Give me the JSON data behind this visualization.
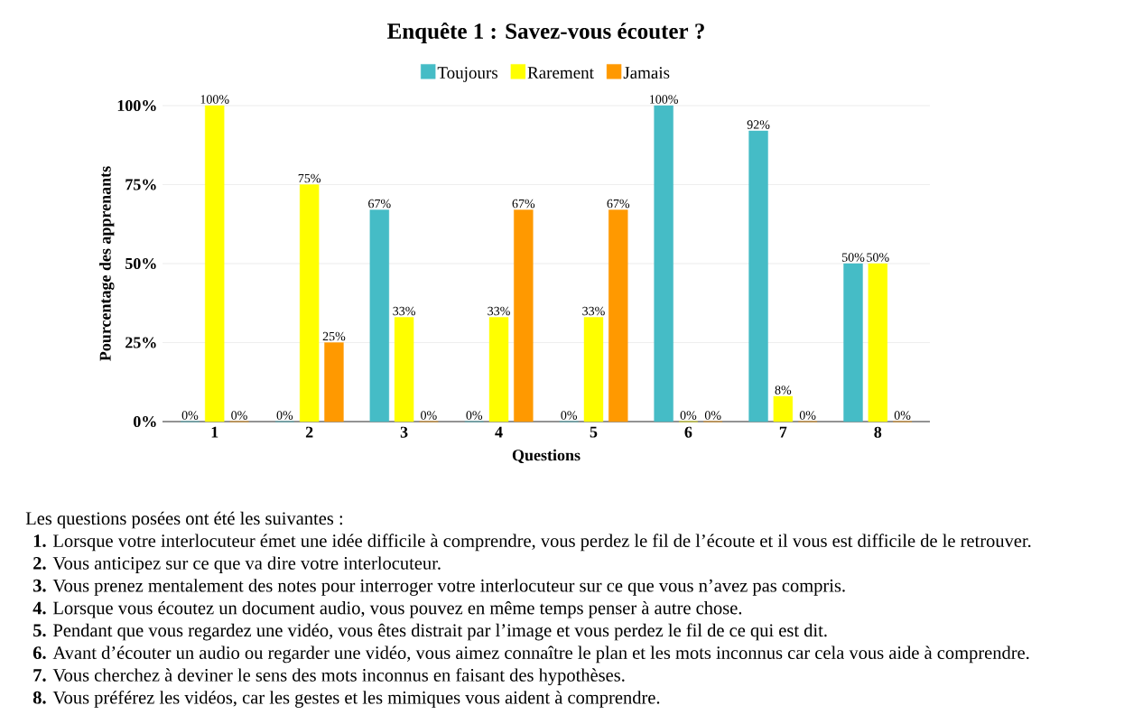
{
  "chart_data": {
    "type": "bar",
    "title": "Enquête 1 : Savez-vous écouter ?",
    "xlabel": "Questions",
    "ylabel": "Pourcentage des apprenants",
    "categories": [
      "1",
      "2",
      "3",
      "4",
      "5",
      "6",
      "7",
      "8"
    ],
    "series": [
      {
        "name": "Toujours",
        "color": "#45bcc6",
        "values": [
          0,
          0,
          67,
          0,
          0,
          100,
          92,
          50
        ],
        "value_labels": [
          "0%",
          "0%",
          "67%",
          "0%",
          "0%",
          "100%",
          "92%",
          "50%"
        ]
      },
      {
        "name": "Rarement",
        "color": "#ffff00",
        "values": [
          100,
          75,
          33,
          33,
          33,
          0,
          8,
          50
        ],
        "value_labels": [
          "100%",
          "75%",
          "33%",
          "33%",
          "33%",
          "0%",
          "8%",
          "50%"
        ]
      },
      {
        "name": "Jamais",
        "color": "#ff9900",
        "values": [
          0,
          25,
          0,
          67,
          67,
          0,
          0,
          0
        ],
        "value_labels": [
          "0%",
          "25%",
          "0%",
          "67%",
          "67%",
          "0%",
          "0%",
          "0%"
        ]
      }
    ],
    "ylim": [
      0,
      100
    ],
    "yticks": [
      {
        "value": 0,
        "label": "0%"
      },
      {
        "value": 25,
        "label": "25%"
      },
      {
        "value": 50,
        "label": "50%"
      },
      {
        "value": 75,
        "label": "75%"
      },
      {
        "value": 100,
        "label": "100%"
      }
    ],
    "grid": "y",
    "legend": "top",
    "annotations": [
      "Les questions posées ont été les suivantes :",
      "**1.** Lorsque votre interlocuteur émet une idée difficile à comprendre, vous perdez le fil de l’écoute et il vous est difficile de le retrouver.",
      "**2.** Vous anticipez sur ce que va dire votre interlocuteur.",
      "**3.** Vous prenez mentalement des notes pour interroger votre interlocuteur sur ce que vous n’avez pas compris.",
      "**4.** Lorsque vous écoutez un document audio, vous pouvez en même temps penser à autre chose.",
      "**5.** Pendant que vous regardez une vidéo, vous êtes distrait par l’image et vous perdez le fil de ce qui est dit.",
      "**6.** Avant d’écouter un audio ou regarder une vidéo, vous aimez connaître le plan et les mots inconnus car cela vous aide à comprendre.",
      "**7.** Vous cherchez à deviner le sens des mots inconnus en faisant des hypothèses.",
      "**8.** Vous préférez les vidéos, car les gestes et les mimiques vous aident à comprendre."
    ]
  }
}
